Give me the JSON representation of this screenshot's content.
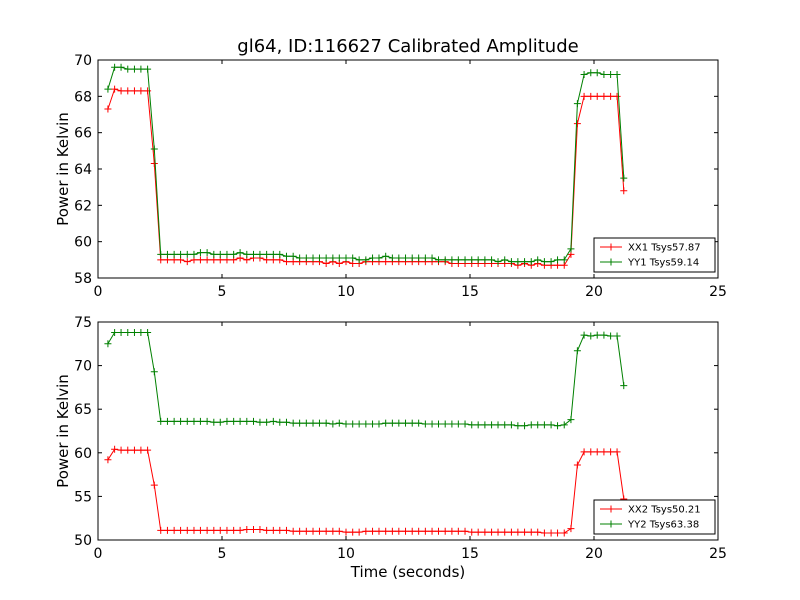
{
  "chart_data": [
    {
      "type": "line",
      "title": "gl64, ID:116627 Calibrated Amplitude",
      "xlabel": "",
      "ylabel": "Power in Kelvin",
      "xlim": [
        0,
        25
      ],
      "ylim": [
        58,
        70
      ],
      "xticks": [
        0,
        5,
        10,
        15,
        20,
        25
      ],
      "yticks": [
        58,
        60,
        62,
        64,
        66,
        68,
        70
      ],
      "xtick_labels": [
        "0",
        "5",
        "10",
        "15",
        "20",
        "25"
      ],
      "ytick_labels": [
        "58",
        "60",
        "62",
        "64",
        "66",
        "68",
        "70"
      ],
      "grid": false,
      "legend_position": "lower-right",
      "marker": "+",
      "x": [
        0.4,
        0.67,
        0.93,
        1.2,
        1.47,
        1.73,
        2.0,
        2.27,
        2.53,
        2.8,
        3.07,
        3.33,
        3.6,
        3.87,
        4.13,
        4.4,
        4.67,
        4.93,
        5.2,
        5.47,
        5.73,
        6.0,
        6.27,
        6.53,
        6.8,
        7.07,
        7.33,
        7.6,
        7.87,
        8.13,
        8.4,
        8.67,
        8.93,
        9.2,
        9.47,
        9.73,
        10.0,
        10.27,
        10.53,
        10.8,
        11.07,
        11.33,
        11.6,
        11.87,
        12.13,
        12.4,
        12.67,
        12.93,
        13.2,
        13.47,
        13.73,
        14.0,
        14.27,
        14.53,
        14.8,
        15.07,
        15.33,
        15.6,
        15.87,
        16.13,
        16.4,
        16.67,
        16.93,
        17.2,
        17.47,
        17.73,
        18.0,
        18.27,
        18.53,
        18.8,
        19.07,
        19.33,
        19.6,
        19.87,
        20.13,
        20.4,
        20.67,
        20.93,
        21.2
      ],
      "series": [
        {
          "name": "XX1 Tsys57.87",
          "color": "#ff0000",
          "values": [
            67.3,
            68.4,
            68.3,
            68.3,
            68.3,
            68.3,
            68.3,
            64.3,
            59.0,
            59.0,
            59.0,
            59.0,
            58.9,
            59.0,
            59.0,
            59.0,
            59.0,
            59.0,
            59.0,
            59.0,
            59.1,
            59.0,
            59.1,
            59.1,
            59.0,
            59.0,
            59.0,
            58.9,
            58.9,
            58.9,
            58.9,
            58.9,
            58.9,
            58.8,
            58.9,
            58.8,
            58.9,
            58.8,
            58.8,
            58.9,
            58.9,
            58.9,
            58.9,
            58.9,
            58.9,
            58.9,
            58.9,
            58.9,
            58.9,
            58.9,
            58.9,
            58.9,
            58.8,
            58.8,
            58.8,
            58.8,
            58.8,
            58.8,
            58.8,
            58.8,
            58.8,
            58.8,
            58.7,
            58.8,
            58.7,
            58.8,
            58.7,
            58.7,
            58.7,
            58.7,
            59.3,
            66.5,
            68.0,
            68.0,
            68.0,
            68.0,
            68.0,
            68.0,
            62.8
          ]
        },
        {
          "name": "YY1 Tsys59.14",
          "color": "#008000",
          "values": [
            68.4,
            69.6,
            69.6,
            69.5,
            69.5,
            69.5,
            69.5,
            65.1,
            59.3,
            59.3,
            59.3,
            59.3,
            59.3,
            59.3,
            59.4,
            59.4,
            59.3,
            59.3,
            59.3,
            59.3,
            59.4,
            59.3,
            59.3,
            59.3,
            59.3,
            59.3,
            59.3,
            59.2,
            59.2,
            59.1,
            59.1,
            59.1,
            59.1,
            59.1,
            59.1,
            59.1,
            59.1,
            59.1,
            59.0,
            59.0,
            59.1,
            59.1,
            59.2,
            59.1,
            59.1,
            59.1,
            59.1,
            59.1,
            59.1,
            59.1,
            59.0,
            59.0,
            59.0,
            59.0,
            59.0,
            59.0,
            59.0,
            59.0,
            59.0,
            58.9,
            59.0,
            58.9,
            58.9,
            58.9,
            58.9,
            59.0,
            58.9,
            58.9,
            59.0,
            59.0,
            59.6,
            67.6,
            69.2,
            69.3,
            69.3,
            69.2,
            69.2,
            69.2,
            63.5
          ]
        }
      ]
    },
    {
      "type": "line",
      "title": "",
      "xlabel": "Time (seconds)",
      "ylabel": "Power in Kelvin",
      "xlim": [
        0,
        25
      ],
      "ylim": [
        50,
        75
      ],
      "xticks": [
        0,
        5,
        10,
        15,
        20,
        25
      ],
      "yticks": [
        50,
        55,
        60,
        65,
        70,
        75
      ],
      "xtick_labels": [
        "0",
        "5",
        "10",
        "15",
        "20",
        "25"
      ],
      "ytick_labels": [
        "50",
        "55",
        "60",
        "65",
        "70",
        "75"
      ],
      "grid": false,
      "legend_position": "lower-right",
      "marker": "+",
      "x": [
        0.4,
        0.67,
        0.93,
        1.2,
        1.47,
        1.73,
        2.0,
        2.27,
        2.53,
        2.8,
        3.07,
        3.33,
        3.6,
        3.87,
        4.13,
        4.4,
        4.67,
        4.93,
        5.2,
        5.47,
        5.73,
        6.0,
        6.27,
        6.53,
        6.8,
        7.07,
        7.33,
        7.6,
        7.87,
        8.13,
        8.4,
        8.67,
        8.93,
        9.2,
        9.47,
        9.73,
        10.0,
        10.27,
        10.53,
        10.8,
        11.07,
        11.33,
        11.6,
        11.87,
        12.13,
        12.4,
        12.67,
        12.93,
        13.2,
        13.47,
        13.73,
        14.0,
        14.27,
        14.53,
        14.8,
        15.07,
        15.33,
        15.6,
        15.87,
        16.13,
        16.4,
        16.67,
        16.93,
        17.2,
        17.47,
        17.73,
        18.0,
        18.27,
        18.53,
        18.8,
        19.07,
        19.33,
        19.6,
        19.87,
        20.13,
        20.4,
        20.67,
        20.93,
        21.2
      ],
      "series": [
        {
          "name": "XX2 Tsys50.21",
          "color": "#ff0000",
          "values": [
            59.2,
            60.4,
            60.3,
            60.3,
            60.3,
            60.3,
            60.3,
            56.3,
            51.1,
            51.1,
            51.1,
            51.1,
            51.1,
            51.1,
            51.1,
            51.1,
            51.1,
            51.1,
            51.1,
            51.1,
            51.1,
            51.2,
            51.2,
            51.2,
            51.1,
            51.1,
            51.1,
            51.1,
            51.0,
            51.0,
            51.0,
            51.0,
            51.0,
            51.0,
            51.0,
            51.0,
            50.9,
            50.9,
            50.9,
            51.0,
            51.0,
            51.0,
            51.0,
            51.0,
            51.0,
            51.0,
            51.0,
            51.0,
            51.0,
            51.0,
            51.0,
            51.0,
            51.0,
            51.0,
            51.0,
            50.9,
            50.9,
            50.9,
            50.9,
            50.9,
            50.9,
            50.9,
            50.9,
            50.9,
            50.9,
            50.9,
            50.8,
            50.8,
            50.8,
            50.8,
            51.3,
            58.6,
            60.1,
            60.1,
            60.1,
            60.1,
            60.1,
            60.1,
            54.7
          ]
        },
        {
          "name": "YY2 Tsys63.38",
          "color": "#008000",
          "values": [
            72.5,
            73.8,
            73.8,
            73.8,
            73.8,
            73.8,
            73.8,
            69.3,
            63.6,
            63.6,
            63.6,
            63.6,
            63.6,
            63.6,
            63.6,
            63.6,
            63.5,
            63.5,
            63.6,
            63.6,
            63.6,
            63.6,
            63.6,
            63.5,
            63.5,
            63.6,
            63.5,
            63.5,
            63.4,
            63.4,
            63.4,
            63.4,
            63.4,
            63.4,
            63.3,
            63.4,
            63.3,
            63.3,
            63.3,
            63.3,
            63.3,
            63.3,
            63.4,
            63.4,
            63.4,
            63.4,
            63.4,
            63.4,
            63.3,
            63.3,
            63.3,
            63.3,
            63.3,
            63.3,
            63.3,
            63.2,
            63.2,
            63.2,
            63.2,
            63.2,
            63.2,
            63.2,
            63.1,
            63.1,
            63.2,
            63.2,
            63.2,
            63.2,
            63.1,
            63.2,
            63.8,
            71.7,
            73.5,
            73.4,
            73.5,
            73.5,
            73.4,
            73.4,
            67.7
          ]
        }
      ]
    }
  ]
}
